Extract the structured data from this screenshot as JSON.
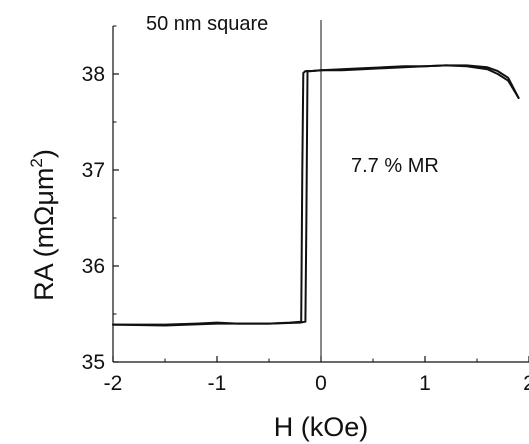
{
  "chart_data": {
    "type": "line",
    "title": "50 nm square",
    "xlabel": "H (kOe)",
    "ylabel_text": "RA (mΩμm",
    "ylabel_sup": "2",
    "ylabel_close": ")",
    "annotation": "7.7 % MR",
    "xlim": [
      -2,
      2
    ],
    "ylim": [
      35,
      38.5
    ],
    "x_ticks": [
      -2,
      -1,
      0,
      1,
      2
    ],
    "x_tick_labels": [
      "-2",
      "-1",
      "0",
      "1",
      "2"
    ],
    "y_ticks": [
      35,
      36,
      37,
      38
    ],
    "y_tick_labels": [
      "35",
      "36",
      "37",
      "38"
    ],
    "grid": false,
    "vertical_reference_line_x": 0,
    "line_color": "#111111",
    "series": [
      {
        "x": [
          -2.0,
          -1.5,
          -1.2,
          -1.0,
          -0.8,
          -0.5,
          -0.3,
          -0.19,
          -0.18,
          -0.17,
          -0.15,
          -0.1,
          0.0,
          0.2,
          0.4,
          0.6,
          0.8,
          1.0,
          1.2,
          1.4,
          1.6,
          1.7,
          1.8,
          1.9
        ],
        "y": [
          35.39,
          35.39,
          35.4,
          35.41,
          35.4,
          35.4,
          35.41,
          35.42,
          37.0,
          38.01,
          38.03,
          38.03,
          38.04,
          38.05,
          38.06,
          38.07,
          38.08,
          38.08,
          38.09,
          38.08,
          38.05,
          38.0,
          37.93,
          37.75
        ]
      },
      {
        "x": [
          1.9,
          1.8,
          1.7,
          1.6,
          1.4,
          1.2,
          1.0,
          0.8,
          0.6,
          0.4,
          0.2,
          0.0,
          -0.1,
          -0.13,
          -0.14,
          -0.15,
          -0.2,
          -0.5,
          -1.0,
          -1.5,
          -2.0
        ],
        "y": [
          37.75,
          37.96,
          38.03,
          38.07,
          38.09,
          38.09,
          38.08,
          38.07,
          38.06,
          38.05,
          38.04,
          38.04,
          38.03,
          38.03,
          36.5,
          35.42,
          35.41,
          35.4,
          35.4,
          35.38,
          35.39
        ]
      }
    ]
  }
}
